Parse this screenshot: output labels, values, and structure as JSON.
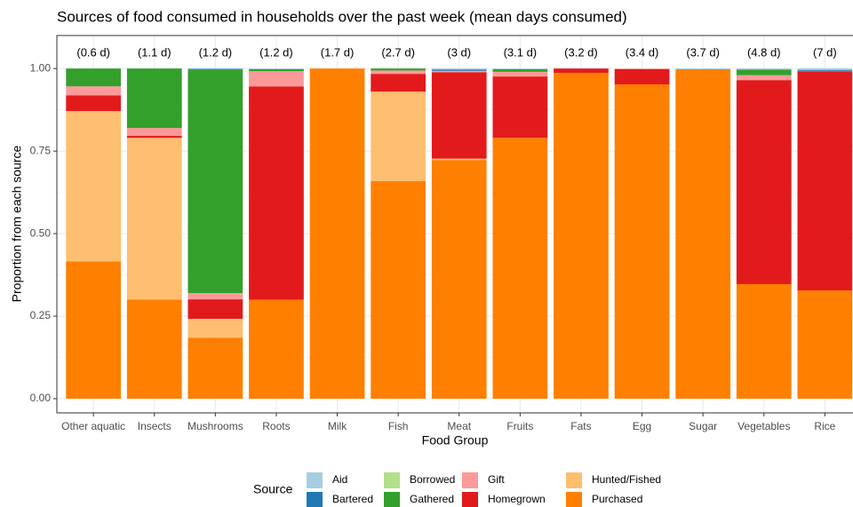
{
  "chart_data": {
    "type": "stacked_bar",
    "title": "Sources of food consumed in households over the past week (mean days consumed)",
    "x_label": "Food Group",
    "y_label": "Proportion from each source",
    "legend_title": "Source",
    "categories": [
      "Other aquatic",
      "Insects",
      "Mushrooms",
      "Roots",
      "Milk",
      "Fish",
      "Meat",
      "Fruits",
      "Fats",
      "Egg",
      "Sugar",
      "Vegetables",
      "Rice"
    ],
    "annotations": [
      "(0.6 d)",
      "(1.1 d)",
      "(1.2 d)",
      "(1.2 d)",
      "(1.7 d)",
      "(2.7 d)",
      "(3 d)",
      "(3.1 d)",
      "(3.2 d)",
      "(3.4 d)",
      "(3.7 d)",
      "(4.8 d)",
      "(7 d)"
    ],
    "series": [
      {
        "name": "Aid",
        "color": "#a6cee3",
        "values": [
          0,
          0,
          0.001,
          0.002,
          0,
          0,
          0.003,
          0.002,
          0,
          0,
          0.002,
          0.003,
          0.004
        ]
      },
      {
        "name": "Bartered",
        "color": "#1f78b4",
        "values": [
          0,
          0,
          0.002,
          0,
          0,
          0,
          0.004,
          0,
          0,
          0,
          0,
          0,
          0.003
        ]
      },
      {
        "name": "Borrowed",
        "color": "#b2df8a",
        "values": [
          0,
          0,
          0,
          0,
          0,
          0,
          0,
          0,
          0,
          0,
          0,
          0,
          0
        ]
      },
      {
        "name": "Gathered",
        "color": "#33a02c",
        "values": [
          0.054,
          0.18,
          0.677,
          0.006,
          0,
          0.006,
          0,
          0.008,
          0,
          0,
          0,
          0.017,
          0
        ]
      },
      {
        "name": "Gift",
        "color": "#fb9a99",
        "values": [
          0.027,
          0.024,
          0.019,
          0.046,
          0,
          0.01,
          0.004,
          0.014,
          0,
          0.002,
          0,
          0.015,
          0.001
        ]
      },
      {
        "name": "Homegrown",
        "color": "#e31a1c",
        "values": [
          0.048,
          0.006,
          0.059,
          0.646,
          0,
          0.054,
          0.262,
          0.186,
          0.013,
          0.046,
          0,
          0.618,
          0.664
        ]
      },
      {
        "name": "Hunted/Fished",
        "color": "#fdbf6f",
        "values": [
          0.455,
          0.49,
          0.057,
          0,
          0,
          0.271,
          0.004,
          0,
          0,
          0,
          0,
          0,
          0
        ]
      },
      {
        "name": "Purchased",
        "color": "#ff7f00",
        "values": [
          0.416,
          0.3,
          0.185,
          0.3,
          1,
          0.659,
          0.723,
          0.79,
          0.987,
          0.952,
          0.998,
          0.347,
          0.328
        ]
      }
    ],
    "ylim": [
      -0.043,
      1.1
    ],
    "yticks": [
      {
        "value": 0,
        "label": "0.00"
      },
      {
        "value": 0.25,
        "label": "0.25"
      },
      {
        "value": 0.5,
        "label": "0.50"
      },
      {
        "value": 0.75,
        "label": "0.75"
      },
      {
        "value": 1,
        "label": "1.00"
      }
    ],
    "grid": true
  }
}
